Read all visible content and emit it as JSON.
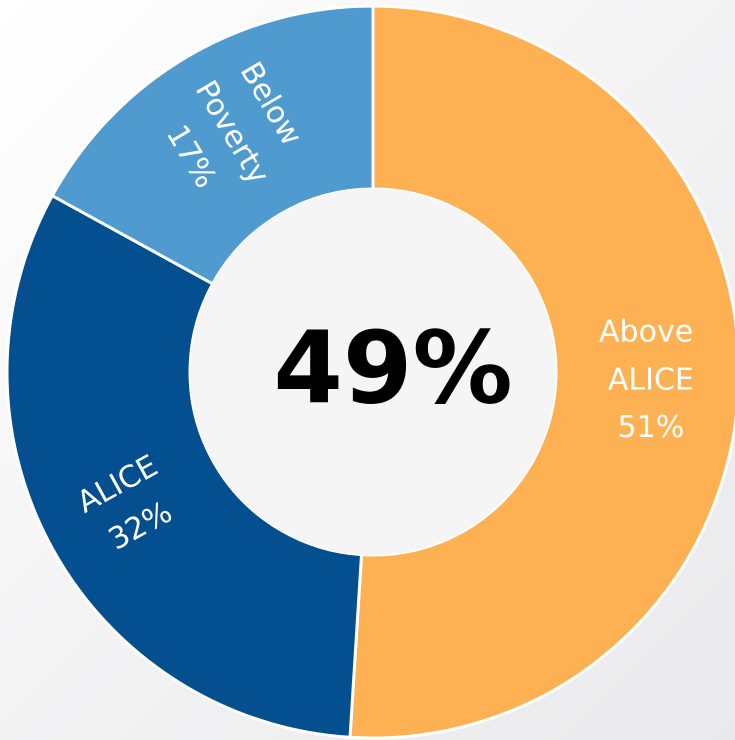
{
  "chart_data": {
    "type": "donut",
    "categories": [
      "Above ALICE",
      "ALICE",
      "Below Poverty"
    ],
    "values": [
      51,
      32,
      17
    ],
    "value_labels": [
      "51%",
      "32%",
      "17%"
    ],
    "colors": [
      "#fdb152",
      "#034f8f",
      "#4f9bd0"
    ],
    "center_label": "49%"
  }
}
